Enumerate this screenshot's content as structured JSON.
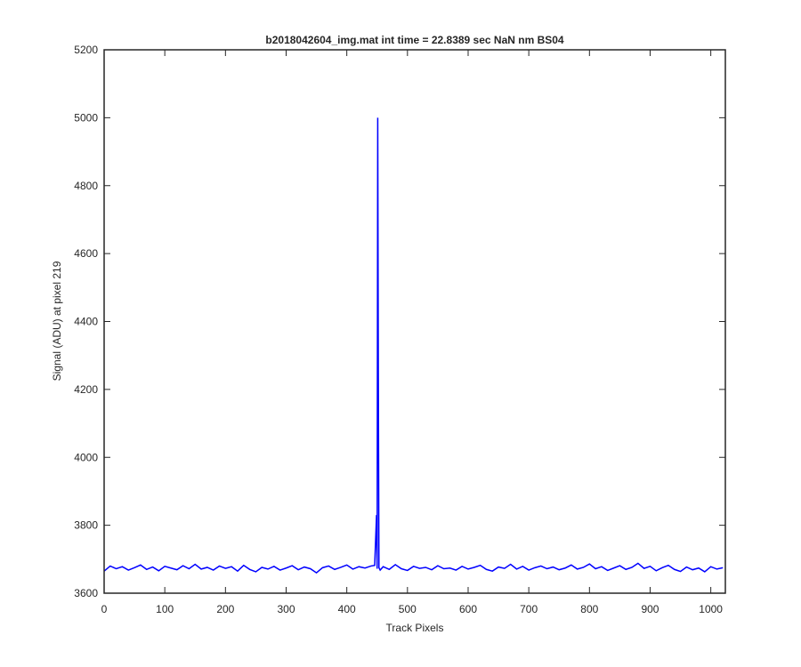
{
  "chart_data": {
    "type": "line",
    "title": "b2018042604_img.mat int time = 22.8389 sec  NaN nm BS04",
    "x_label": "Track Pixels",
    "y_label": "Signal (ADU) at pixel 219",
    "color": "#0000ff",
    "x": [
      0,
      10,
      20,
      30,
      40,
      50,
      60,
      70,
      80,
      90,
      100,
      110,
      120,
      130,
      140,
      150,
      160,
      170,
      180,
      190,
      200,
      210,
      220,
      230,
      240,
      250,
      260,
      270,
      280,
      290,
      300,
      310,
      320,
      330,
      340,
      350,
      360,
      370,
      380,
      390,
      400,
      410,
      420,
      430,
      440,
      446,
      449,
      450,
      451,
      452,
      453,
      455,
      460,
      470,
      480,
      490,
      500,
      510,
      520,
      530,
      540,
      550,
      560,
      570,
      580,
      590,
      600,
      610,
      620,
      630,
      640,
      650,
      660,
      670,
      680,
      690,
      700,
      710,
      720,
      730,
      740,
      750,
      760,
      770,
      780,
      790,
      800,
      810,
      820,
      830,
      840,
      850,
      860,
      870,
      880,
      890,
      900,
      910,
      920,
      930,
      940,
      950,
      960,
      970,
      980,
      990,
      1000,
      1010,
      1020
    ],
    "values": [
      3665,
      3680,
      3672,
      3678,
      3668,
      3675,
      3683,
      3670,
      3677,
      3666,
      3679,
      3674,
      3669,
      3681,
      3672,
      3685,
      3671,
      3676,
      3668,
      3680,
      3673,
      3678,
      3665,
      3682,
      3670,
      3663,
      3676,
      3671,
      3679,
      3668,
      3674,
      3681,
      3669,
      3677,
      3672,
      3660,
      3675,
      3680,
      3670,
      3676,
      3683,
      3671,
      3678,
      3674,
      3680,
      3682,
      3830,
      3672,
      5000,
      4240,
      3675,
      3668,
      3678,
      3670,
      3684,
      3672,
      3667,
      3679,
      3673,
      3676,
      3669,
      3681,
      3672,
      3674,
      3668,
      3679,
      3671,
      3676,
      3682,
      3670,
      3665,
      3677,
      3673,
      3685,
      3671,
      3679,
      3668,
      3675,
      3680,
      3672,
      3677,
      3669,
      3674,
      3683,
      3671,
      3676,
      3686,
      3672,
      3678,
      3667,
      3674,
      3681,
      3670,
      3676,
      3688,
      3673,
      3679,
      3666,
      3675,
      3682,
      3670,
      3664,
      3677,
      3669,
      3674,
      3663,
      3678,
      3671,
      3675
    ],
    "xlim": [
      0,
      1024
    ],
    "ylim": [
      3600,
      5200
    ],
    "xticks": [
      0,
      100,
      200,
      300,
      400,
      500,
      600,
      700,
      800,
      900,
      1000
    ],
    "yticks": [
      3600,
      3800,
      4000,
      4200,
      4400,
      4600,
      4800,
      5000,
      5200
    ]
  }
}
